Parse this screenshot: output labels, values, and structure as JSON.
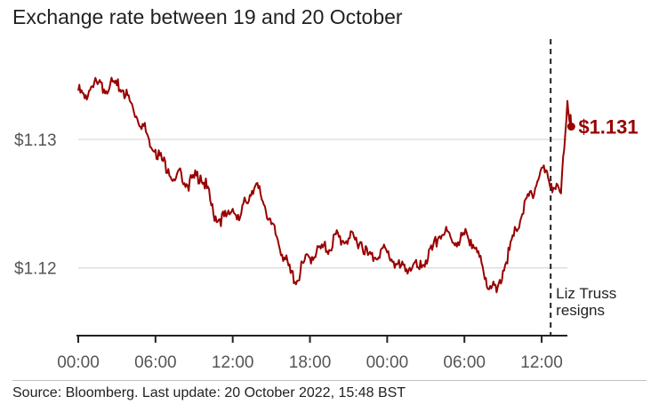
{
  "title": "Exchange rate between 19 and 20 October",
  "source": "Source: Bloomberg. Last update: 20 October 2022, 15:48 BST",
  "colors": {
    "line": "#990000",
    "grid": "#d0d0d0",
    "axis": "#222222",
    "text": "#555555"
  },
  "chart_data": {
    "type": "line",
    "title": "Exchange rate between 19 and 20 October",
    "xlabel": "",
    "ylabel": "",
    "x_unit": "hours since 00:00, 19 October 2022",
    "xlim": [
      0,
      38
    ],
    "ylim": [
      1.1148,
      1.1385
    ],
    "y_ticks": [
      {
        "value": 1.12,
        "label": "$1.12"
      },
      {
        "value": 1.13,
        "label": "$1.13"
      }
    ],
    "x_ticks": [
      {
        "value": 0,
        "label": "00:00"
      },
      {
        "value": 6,
        "label": "06:00"
      },
      {
        "value": 12,
        "label": "12:00"
      },
      {
        "value": 18,
        "label": "18:00"
      },
      {
        "value": 24,
        "label": "00:00"
      },
      {
        "value": 30,
        "label": "06:00"
      },
      {
        "value": 36,
        "label": "12:00"
      }
    ],
    "grid": "horizontal",
    "series": [
      {
        "name": "",
        "color": "#990000",
        "x": [
          0,
          0.5,
          1,
          1.5,
          2,
          2.5,
          3,
          3.5,
          4,
          4.5,
          5,
          5.5,
          6,
          6.5,
          7,
          7.5,
          8,
          8.5,
          9,
          9.5,
          10,
          10.5,
          11,
          11.5,
          12,
          12.5,
          13,
          13.5,
          14,
          14.5,
          15,
          15.5,
          16,
          16.5,
          17,
          17.5,
          18,
          18.5,
          19,
          19.5,
          20,
          20.5,
          21,
          21.5,
          22,
          22.5,
          23,
          23.5,
          24,
          24.5,
          25,
          25.5,
          26,
          26.5,
          27,
          27.5,
          28,
          28.5,
          29,
          29.5,
          30,
          30.5,
          31,
          31.5,
          32,
          32.5,
          33,
          33.5,
          34,
          34.5,
          35,
          35.5,
          36,
          36.5,
          37,
          37.5,
          38,
          38.3
        ],
        "values": [
          1.1338,
          1.1332,
          1.1341,
          1.1343,
          1.1339,
          1.1344,
          1.1342,
          1.1338,
          1.133,
          1.1318,
          1.1312,
          1.13,
          1.1292,
          1.1284,
          1.1277,
          1.1268,
          1.1274,
          1.1264,
          1.127,
          1.1272,
          1.1262,
          1.1242,
          1.1238,
          1.124,
          1.1246,
          1.1237,
          1.1252,
          1.126,
          1.1262,
          1.1248,
          1.1234,
          1.1222,
          1.1208,
          1.1196,
          1.119,
          1.1204,
          1.1208,
          1.1212,
          1.1216,
          1.1214,
          1.1226,
          1.1221,
          1.1223,
          1.1222,
          1.122,
          1.121,
          1.1208,
          1.1214,
          1.1212,
          1.1205,
          1.12,
          1.1199,
          1.1202,
          1.1199,
          1.1206,
          1.1214,
          1.1224,
          1.1228,
          1.1222,
          1.122,
          1.1226,
          1.1222,
          1.1212,
          1.1196,
          1.1186,
          1.1181,
          1.1198,
          1.1214,
          1.123,
          1.1242,
          1.1256,
          1.1262,
          1.1278,
          1.127,
          1.1262,
          1.1258,
          1.133,
          1.131
        ]
      }
    ],
    "last_value": {
      "x": 38.3,
      "y": 1.131,
      "label": "$1.131"
    },
    "annotations": [
      {
        "x": 36.7,
        "text_lines": [
          "Liz Truss",
          "resigns"
        ],
        "style": "dashed vertical line"
      }
    ]
  }
}
